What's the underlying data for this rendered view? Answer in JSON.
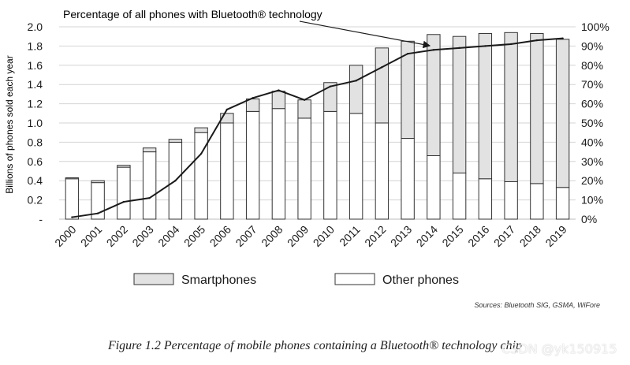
{
  "chart_data": {
    "type": "bar",
    "title": "Percentage of all phones with Bluetooth® technology",
    "ylabel": "Billions of phones sold each year",
    "y2label": "",
    "ylim": [
      0,
      2.0
    ],
    "y2lim": [
      0,
      100
    ],
    "yticks": [
      "-",
      "0.2",
      "0.4",
      "0.6",
      "0.8",
      "1.0",
      "1.2",
      "1.4",
      "1.6",
      "1.8",
      "2.0"
    ],
    "y2ticks": [
      "0%",
      "10%",
      "20%",
      "30%",
      "40%",
      "50%",
      "60%",
      "70%",
      "80%",
      "90%",
      "100%"
    ],
    "categories": [
      "2000",
      "2001",
      "2002",
      "2003",
      "2004",
      "2005",
      "2006",
      "2007",
      "2008",
      "2009",
      "2010",
      "2011",
      "2012",
      "2013",
      "2014",
      "2015",
      "2016",
      "2017",
      "2018",
      "2019"
    ],
    "series": [
      {
        "name": "Other phones",
        "type": "stacked-bar",
        "values": [
          0.42,
          0.38,
          0.54,
          0.7,
          0.8,
          0.9,
          1.0,
          1.12,
          1.15,
          1.05,
          1.12,
          1.1,
          1.0,
          0.84,
          0.66,
          0.48,
          0.42,
          0.39,
          0.37,
          0.33
        ]
      },
      {
        "name": "Smartphones",
        "type": "stacked-bar",
        "values": [
          0.01,
          0.02,
          0.02,
          0.04,
          0.03,
          0.05,
          0.1,
          0.13,
          0.18,
          0.19,
          0.3,
          0.5,
          0.78,
          1.01,
          1.26,
          1.42,
          1.51,
          1.55,
          1.56,
          1.54
        ]
      },
      {
        "name": "Percentage of all phones with Bluetooth® technology",
        "type": "line",
        "axis": "right",
        "values": [
          1,
          3,
          9,
          11,
          20,
          34,
          57,
          63,
          67,
          62,
          69,
          72,
          79,
          86,
          88,
          89,
          90,
          91,
          93,
          94
        ]
      }
    ],
    "legend": [
      "Smartphones",
      "Other phones"
    ],
    "legend_position": "bottom",
    "colors": {
      "smartphones": "#e2e2e2",
      "other": "#ffffff",
      "line": "#1a1a1a",
      "bar_edge": "#333333"
    }
  },
  "source": "Sources: Bluetooth SIG, GSMA, WiFore",
  "caption": "Figure 1.2  Percentage of mobile phones containing a Bluetooth® technology chip",
  "watermark": "CSDN @yk150915"
}
